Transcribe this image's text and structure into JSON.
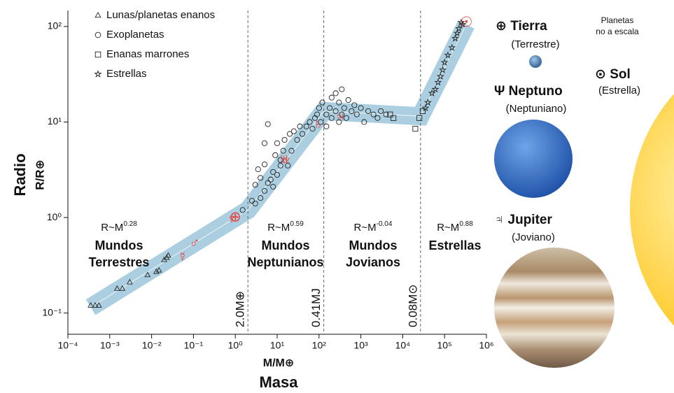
{
  "chart_data": {
    "type": "scatter",
    "x_label": "M/M⊕",
    "x_title": "Masa",
    "y_title": "Radio",
    "y_label": "R/R⊕",
    "log_x": true,
    "log_y": true,
    "legend": "upper left",
    "xlim": [
      0.0001,
      1000000
    ],
    "ylim": [
      0.06,
      147
    ],
    "xticks": [
      {
        "value": 0.0001,
        "label": "10⁻⁴"
      },
      {
        "value": 0.001,
        "label": "10⁻³"
      },
      {
        "value": 0.01,
        "label": "10⁻²"
      },
      {
        "value": 0.1,
        "label": "10⁻¹"
      },
      {
        "value": 1,
        "label": "10⁰"
      },
      {
        "value": 10,
        "label": "10¹"
      },
      {
        "value": 100,
        "label": "10²"
      },
      {
        "value": 1000,
        "label": "10³"
      },
      {
        "value": 10000,
        "label": "10⁴"
      },
      {
        "value": 100000,
        "label": "10⁵"
      },
      {
        "value": 1000000,
        "label": "10⁶"
      }
    ],
    "yticks": [
      {
        "value": 0.1,
        "label": "10⁻¹"
      },
      {
        "value": 1,
        "label": "10⁰"
      },
      {
        "value": 10,
        "label": "10¹"
      },
      {
        "value": 100,
        "label": "10²"
      }
    ],
    "series": [
      {
        "name": "Lunas/planetas enanos",
        "marker": "triangle",
        "color": "#222222",
        "x": [
          0.00035,
          0.00045,
          0.00055,
          0.0015,
          0.002,
          0.003,
          0.008,
          0.013,
          0.015,
          0.02,
          0.023,
          0.025
        ],
        "values": [
          0.12,
          0.12,
          0.12,
          0.18,
          0.18,
          0.21,
          0.25,
          0.27,
          0.28,
          0.36,
          0.38,
          0.4
        ]
      },
      {
        "name": "Exoplanetas",
        "marker": "circle",
        "color": "#222222",
        "x": [
          1.5,
          2.5,
          3,
          3,
          3.5,
          4,
          4,
          5,
          5,
          5,
          6,
          6,
          7,
          8,
          8,
          9,
          10,
          10,
          12,
          12,
          14,
          15,
          18,
          20,
          22,
          25,
          30,
          35,
          40,
          50,
          60,
          70,
          80,
          90,
          100,
          110,
          120,
          150,
          150,
          180,
          200,
          200,
          250,
          250,
          300,
          300,
          350,
          350,
          400,
          450,
          500,
          600,
          700,
          800,
          1000,
          1200,
          1500,
          2000,
          2500,
          3000,
          4000
        ],
        "values": [
          1.2,
          1.5,
          1.4,
          2.2,
          3.2,
          1.6,
          2.6,
          1.9,
          3.6,
          6,
          2.3,
          9.5,
          2.5,
          3,
          2.1,
          4.5,
          2.8,
          6,
          3.5,
          4,
          5,
          6.5,
          3.5,
          7.5,
          5,
          8,
          6.5,
          9,
          7.5,
          9,
          10,
          8.5,
          11,
          12,
          14,
          10,
          16,
          12,
          9,
          14,
          18,
          11,
          20,
          13,
          10,
          16,
          22,
          12,
          14,
          11,
          17,
          13,
          15,
          12,
          14,
          10,
          13,
          12,
          11,
          13,
          12
        ]
      },
      {
        "name": "Enanas marrones",
        "marker": "square",
        "color": "#222222",
        "x": [
          5000,
          6000,
          20000,
          25000,
          30000
        ],
        "values": [
          12,
          11,
          8.5,
          11,
          13
        ]
      },
      {
        "name": "Estrellas",
        "marker": "star",
        "color": "#222222",
        "x": [
          35000,
          40000,
          50000,
          60000,
          70000,
          80000,
          90000,
          100000,
          120000,
          150000,
          180000,
          200000,
          220000,
          250000,
          270000
        ],
        "values": [
          14,
          16,
          20,
          22,
          26,
          30,
          35,
          42,
          50,
          60,
          75,
          85,
          95,
          110,
          105
        ]
      }
    ],
    "fit": {
      "color": "#8fbfd6",
      "x": [
        0.00035,
        2,
        130,
        26600,
        330000
      ],
      "values": [
        0.115,
        1.2,
        13,
        11.5,
        105
      ]
    },
    "solar_system": {
      "color": "#e0403a",
      "symbols": [
        "☿",
        "♂",
        "♀",
        "⊕",
        "♅",
        "♆",
        "♄",
        "♃",
        "☉"
      ],
      "x": [
        0.055,
        0.107,
        0.815,
        1,
        14.5,
        17,
        95,
        318,
        333000
      ],
      "values": [
        0.38,
        0.53,
        0.95,
        1,
        4,
        3.9,
        9.4,
        11.2,
        109
      ]
    },
    "boundaries": [
      {
        "value": 2,
        "label": "2.0M⊕"
      },
      {
        "value": 130,
        "label": "0.41MJ"
      },
      {
        "value": 26600,
        "label": "0.08M⊙"
      }
    ],
    "regions": [
      {
        "law": "R~M",
        "exponent": 0.28,
        "name": [
          "Mundos",
          "Terrestres"
        ]
      },
      {
        "law": "R~M",
        "exponent": 0.59,
        "name": [
          "Mundos",
          "Neptunianos"
        ]
      },
      {
        "law": "R~M",
        "exponent": -0.04,
        "name": [
          "Mundos",
          "Jovianos"
        ]
      },
      {
        "law": "R~M",
        "exponent": 0.88,
        "name": [
          "Estrellas"
        ]
      }
    ]
  },
  "illustrations": {
    "note": [
      "Planetas",
      "no a escala"
    ],
    "earth": {
      "name": "⊕ Tierra",
      "kind": "(Terrestre)"
    },
    "sun": {
      "name": "⊙ Sol",
      "kind": "(Estrella)"
    },
    "neptune": {
      "name": "Ψ Neptuno",
      "kind": "(Neptuniano)"
    },
    "jupiter": {
      "name": "♃ Jupiter",
      "kind": "(Joviano)"
    }
  }
}
